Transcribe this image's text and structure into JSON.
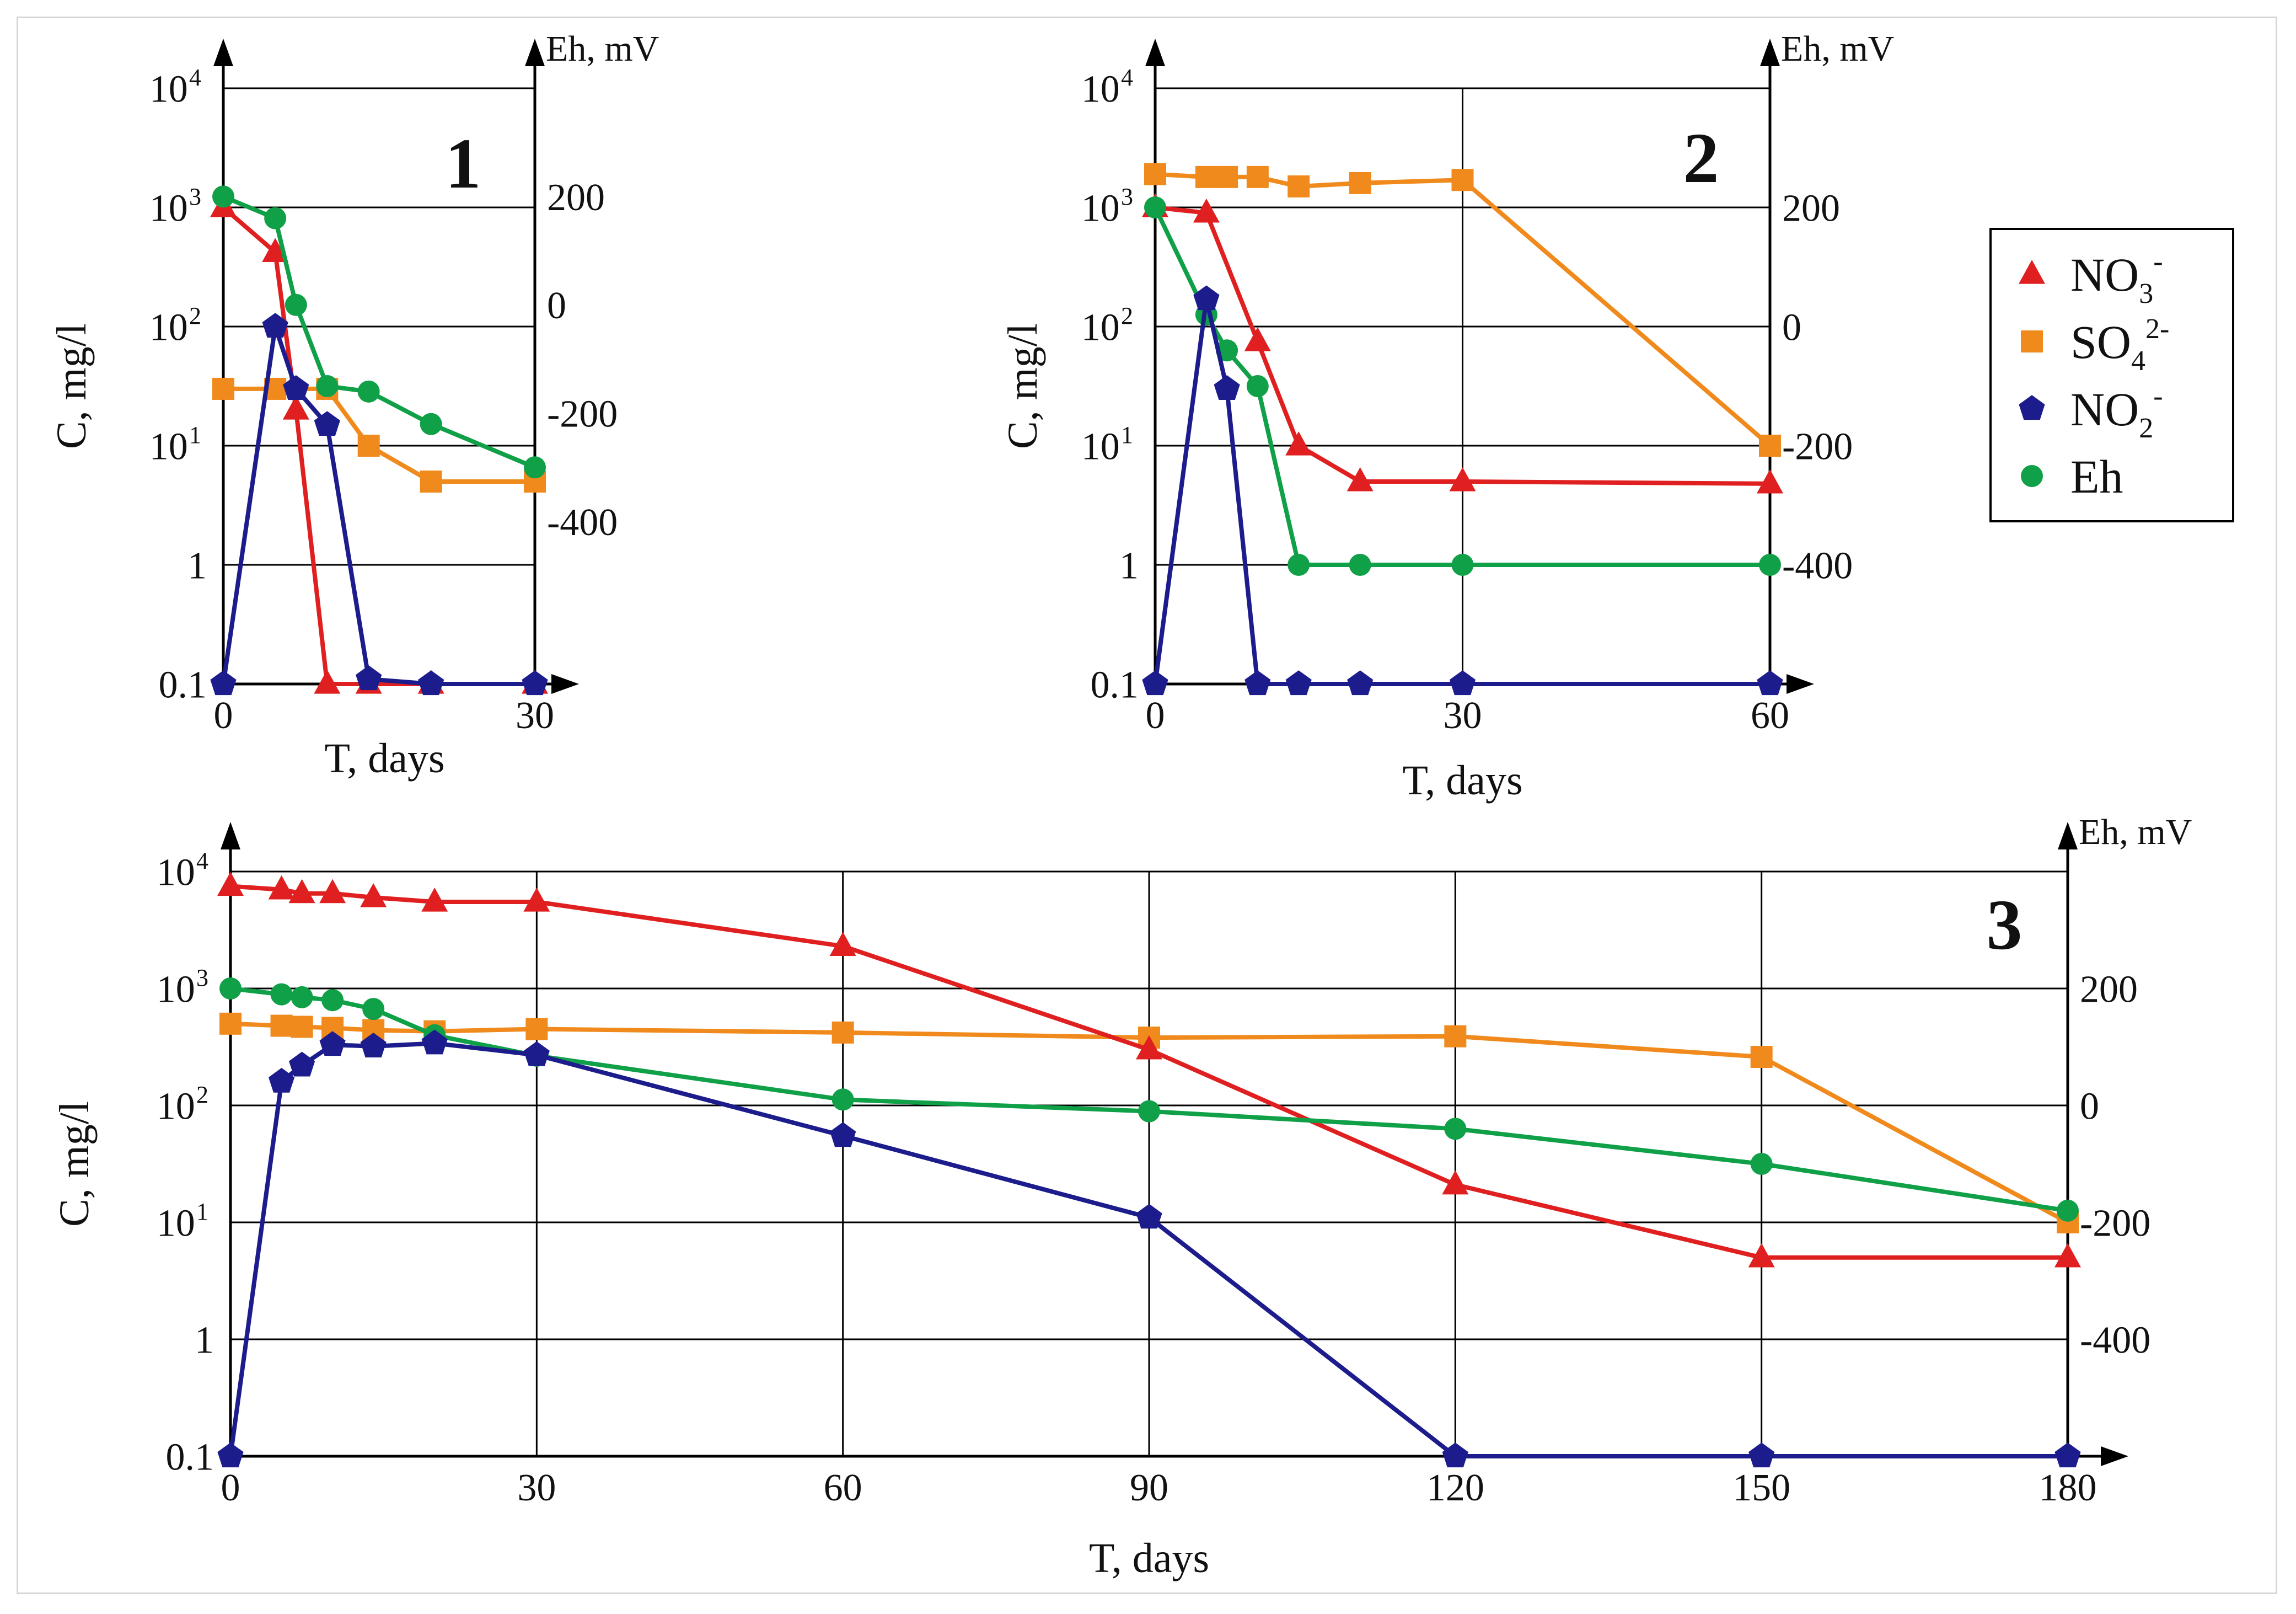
{
  "colors": {
    "NO3": "#e02020",
    "SO4": "#f08a1c",
    "NO2": "#1c1c8c",
    "Eh": "#0fa048"
  },
  "legend": [
    {
      "key": "NO3",
      "base": "NO",
      "sub": "3",
      "sup": "-",
      "marker": "triangle"
    },
    {
      "key": "SO4",
      "base": "SO",
      "sub": "4",
      "sup": "2-",
      "marker": "square"
    },
    {
      "key": "NO2",
      "base": "NO",
      "sub": "2",
      "sup": "-",
      "marker": "pentagon"
    },
    {
      "key": "Eh",
      "base": "Eh",
      "sub": "",
      "sup": "",
      "marker": "circle"
    }
  ],
  "chart_data": [
    {
      "type": "line",
      "panel_label": "1",
      "xlabel": "T, days",
      "ylabel": "C, mg/l",
      "ylabel_right": "Eh, mV",
      "y_scale": "log",
      "ylim": [
        0.1,
        10000
      ],
      "xlim": [
        0,
        30
      ],
      "x_ticks": [
        0,
        30
      ],
      "y_ticks": [
        {
          "v": 0.1,
          "base": "0.1",
          "exp": ""
        },
        {
          "v": 1,
          "base": "1",
          "exp": ""
        },
        {
          "v": 10,
          "base": "10",
          "exp": "1"
        },
        {
          "v": 100,
          "base": "10",
          "exp": "2"
        },
        {
          "v": 1000,
          "base": "10",
          "exp": "3"
        },
        {
          "v": 10000,
          "base": "10",
          "exp": "4"
        }
      ],
      "y2lim": [
        -700,
        400
      ],
      "y2_ticks": [
        200,
        0,
        -200,
        -400
      ],
      "series": [
        {
          "key": "NO3",
          "name": "NO3-",
          "axis": "left",
          "x": [
            0,
            5,
            7,
            10,
            14,
            20,
            30
          ],
          "y": [
            1000,
            420,
            20,
            0.1,
            0.1,
            0.1,
            0.1
          ]
        },
        {
          "key": "SO4",
          "name": "SO4 2-",
          "axis": "left",
          "x": [
            0,
            5,
            10,
            14,
            20,
            30
          ],
          "y": [
            30,
            30,
            30,
            10,
            5,
            5
          ]
        },
        {
          "key": "NO2",
          "name": "NO2-",
          "axis": "left",
          "x": [
            0,
            5,
            7,
            10,
            14,
            20,
            30
          ],
          "y": [
            0.1,
            100,
            30,
            15,
            0.11,
            0.1,
            0.1
          ]
        },
        {
          "key": "Eh",
          "name": "Eh",
          "axis": "right",
          "x": [
            0,
            5,
            7,
            10,
            14,
            20,
            30
          ],
          "y": [
            200,
            160,
            0,
            -150,
            -160,
            -220,
            -300
          ]
        }
      ]
    },
    {
      "type": "line",
      "panel_label": "2",
      "xlabel": "T, days",
      "ylabel": "C, mg/l",
      "ylabel_right": "Eh, mV",
      "y_scale": "log",
      "ylim": [
        0.1,
        10000
      ],
      "xlim": [
        0,
        60
      ],
      "x_ticks": [
        0,
        30,
        60
      ],
      "y_ticks": [
        {
          "v": 0.1,
          "base": "0.1",
          "exp": ""
        },
        {
          "v": 1,
          "base": "1",
          "exp": ""
        },
        {
          "v": 10,
          "base": "10",
          "exp": "1"
        },
        {
          "v": 100,
          "base": "10",
          "exp": "2"
        },
        {
          "v": 1000,
          "base": "10",
          "exp": "3"
        },
        {
          "v": 10000,
          "base": "10",
          "exp": "4"
        }
      ],
      "y2lim": [
        -600,
        400
      ],
      "y2_ticks": [
        200,
        0,
        -200,
        -400
      ],
      "series": [
        {
          "key": "NO3",
          "name": "NO3-",
          "axis": "left",
          "x": [
            0,
            5,
            10,
            14,
            20,
            30,
            60
          ],
          "y": [
            1000,
            900,
            75,
            10,
            5,
            5,
            4.8
          ]
        },
        {
          "key": "SO4",
          "name": "SO4 2-",
          "axis": "left",
          "x": [
            0,
            5,
            7,
            10,
            14,
            20,
            30,
            60
          ],
          "y": [
            1900,
            1800,
            1800,
            1800,
            1500,
            1600,
            1700,
            10
          ]
        },
        {
          "key": "NO2",
          "name": "NO2-",
          "axis": "left",
          "x": [
            0,
            5,
            7,
            10,
            14,
            20,
            30,
            60
          ],
          "y": [
            0.1,
            170,
            30,
            0.1,
            0.1,
            0.1,
            0.1,
            0.1
          ]
        },
        {
          "key": "Eh",
          "name": "Eh",
          "axis": "right",
          "x": [
            0,
            5,
            7,
            10,
            14,
            20,
            30,
            60
          ],
          "y": [
            200,
            20,
            -40,
            -100,
            -400,
            -400,
            -400,
            -400
          ]
        }
      ]
    },
    {
      "type": "line",
      "panel_label": "3",
      "xlabel": "T, days",
      "ylabel": "C, mg/l",
      "ylabel_right": "Eh, mV",
      "y_scale": "log",
      "ylim": [
        0.1,
        10000
      ],
      "xlim": [
        0,
        180
      ],
      "x_ticks": [
        0,
        30,
        60,
        90,
        120,
        150,
        180
      ],
      "y_ticks": [
        {
          "v": 0.1,
          "base": "0.1",
          "exp": ""
        },
        {
          "v": 1,
          "base": "1",
          "exp": ""
        },
        {
          "v": 10,
          "base": "10",
          "exp": "1"
        },
        {
          "v": 100,
          "base": "10",
          "exp": "2"
        },
        {
          "v": 1000,
          "base": "10",
          "exp": "3"
        },
        {
          "v": 10000,
          "base": "10",
          "exp": "4"
        }
      ],
      "y2lim": [
        -600,
        400
      ],
      "y2_ticks": [
        200,
        0,
        -200,
        -400
      ],
      "series": [
        {
          "key": "NO3",
          "name": "NO3-",
          "axis": "left",
          "x": [
            0,
            5,
            7,
            10,
            14,
            20,
            30,
            60,
            90,
            120,
            150,
            180
          ],
          "y": [
            7500,
            7000,
            6500,
            6500,
            6000,
            5500,
            5500,
            2300,
            300,
            21,
            5,
            5
          ]
        },
        {
          "key": "SO4",
          "name": "SO4 2-",
          "axis": "left",
          "x": [
            0,
            5,
            7,
            10,
            14,
            20,
            30,
            60,
            90,
            120,
            150,
            180
          ],
          "y": [
            500,
            480,
            470,
            460,
            440,
            430,
            450,
            420,
            380,
            390,
            260,
            10
          ]
        },
        {
          "key": "NO2",
          "name": "NO2-",
          "axis": "left",
          "x": [
            0,
            5,
            7,
            10,
            14,
            20,
            30,
            60,
            90,
            120,
            150,
            180
          ],
          "y": [
            0.1,
            160,
            220,
            330,
            320,
            340,
            270,
            55,
            11,
            0.1,
            0.1,
            0.1
          ]
        },
        {
          "key": "Eh",
          "name": "Eh",
          "axis": "right",
          "x": [
            0,
            5,
            7,
            10,
            14,
            20,
            30,
            60,
            90,
            120,
            150,
            180
          ],
          "y": [
            200,
            190,
            185,
            180,
            165,
            120,
            85,
            10,
            -10,
            -40,
            -100,
            -180
          ]
        }
      ]
    }
  ]
}
